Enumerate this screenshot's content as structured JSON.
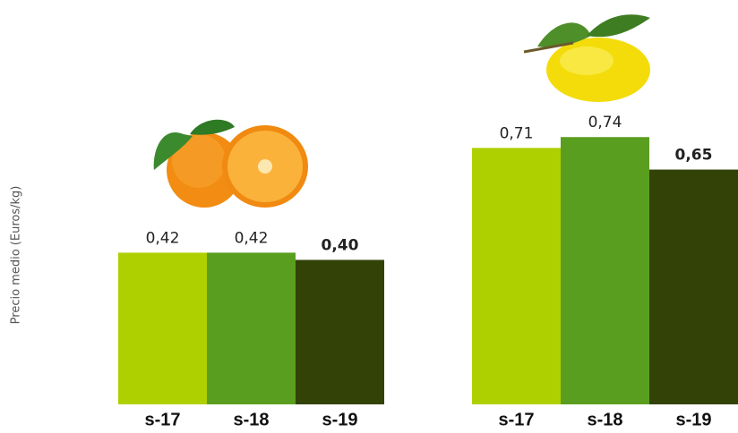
{
  "chart_data": {
    "type": "bar",
    "y_label": "Precio medio (Euros/kg)",
    "categories": [
      null,
      null
    ],
    "series": [
      {
        "name": "s-17",
        "color": "#afd000",
        "values": [
          0.42,
          0.71
        ],
        "value_labels": [
          "0,42",
          "0,71"
        ]
      },
      {
        "name": "s-18",
        "color": "#5a9e1f",
        "values": [
          0.42,
          0.74
        ],
        "value_labels": [
          "0,42",
          "0,74"
        ]
      },
      {
        "name": "s-19",
        "color": "#334207",
        "values": [
          0.4,
          0.65
        ],
        "value_labels": [
          "0,40",
          "0,65"
        ]
      }
    ],
    "ylim": [
      0,
      0.8
    ]
  }
}
